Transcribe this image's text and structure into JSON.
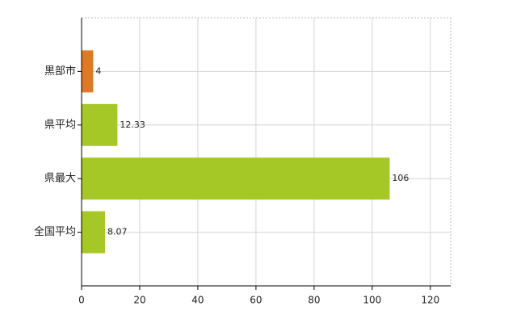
{
  "chart_data": {
    "type": "bar",
    "orientation": "horizontal",
    "categories": [
      "黒部市",
      "県平均",
      "県最大",
      "全国平均"
    ],
    "values": [
      4,
      12.33,
      106,
      8.07
    ],
    "colors": [
      "#e07a22",
      "#a6c826",
      "#a6c826",
      "#a6c826"
    ],
    "xlim": [
      0,
      127
    ],
    "xticks": [
      0,
      20,
      40,
      60,
      80,
      100,
      120
    ],
    "grid": true
  }
}
